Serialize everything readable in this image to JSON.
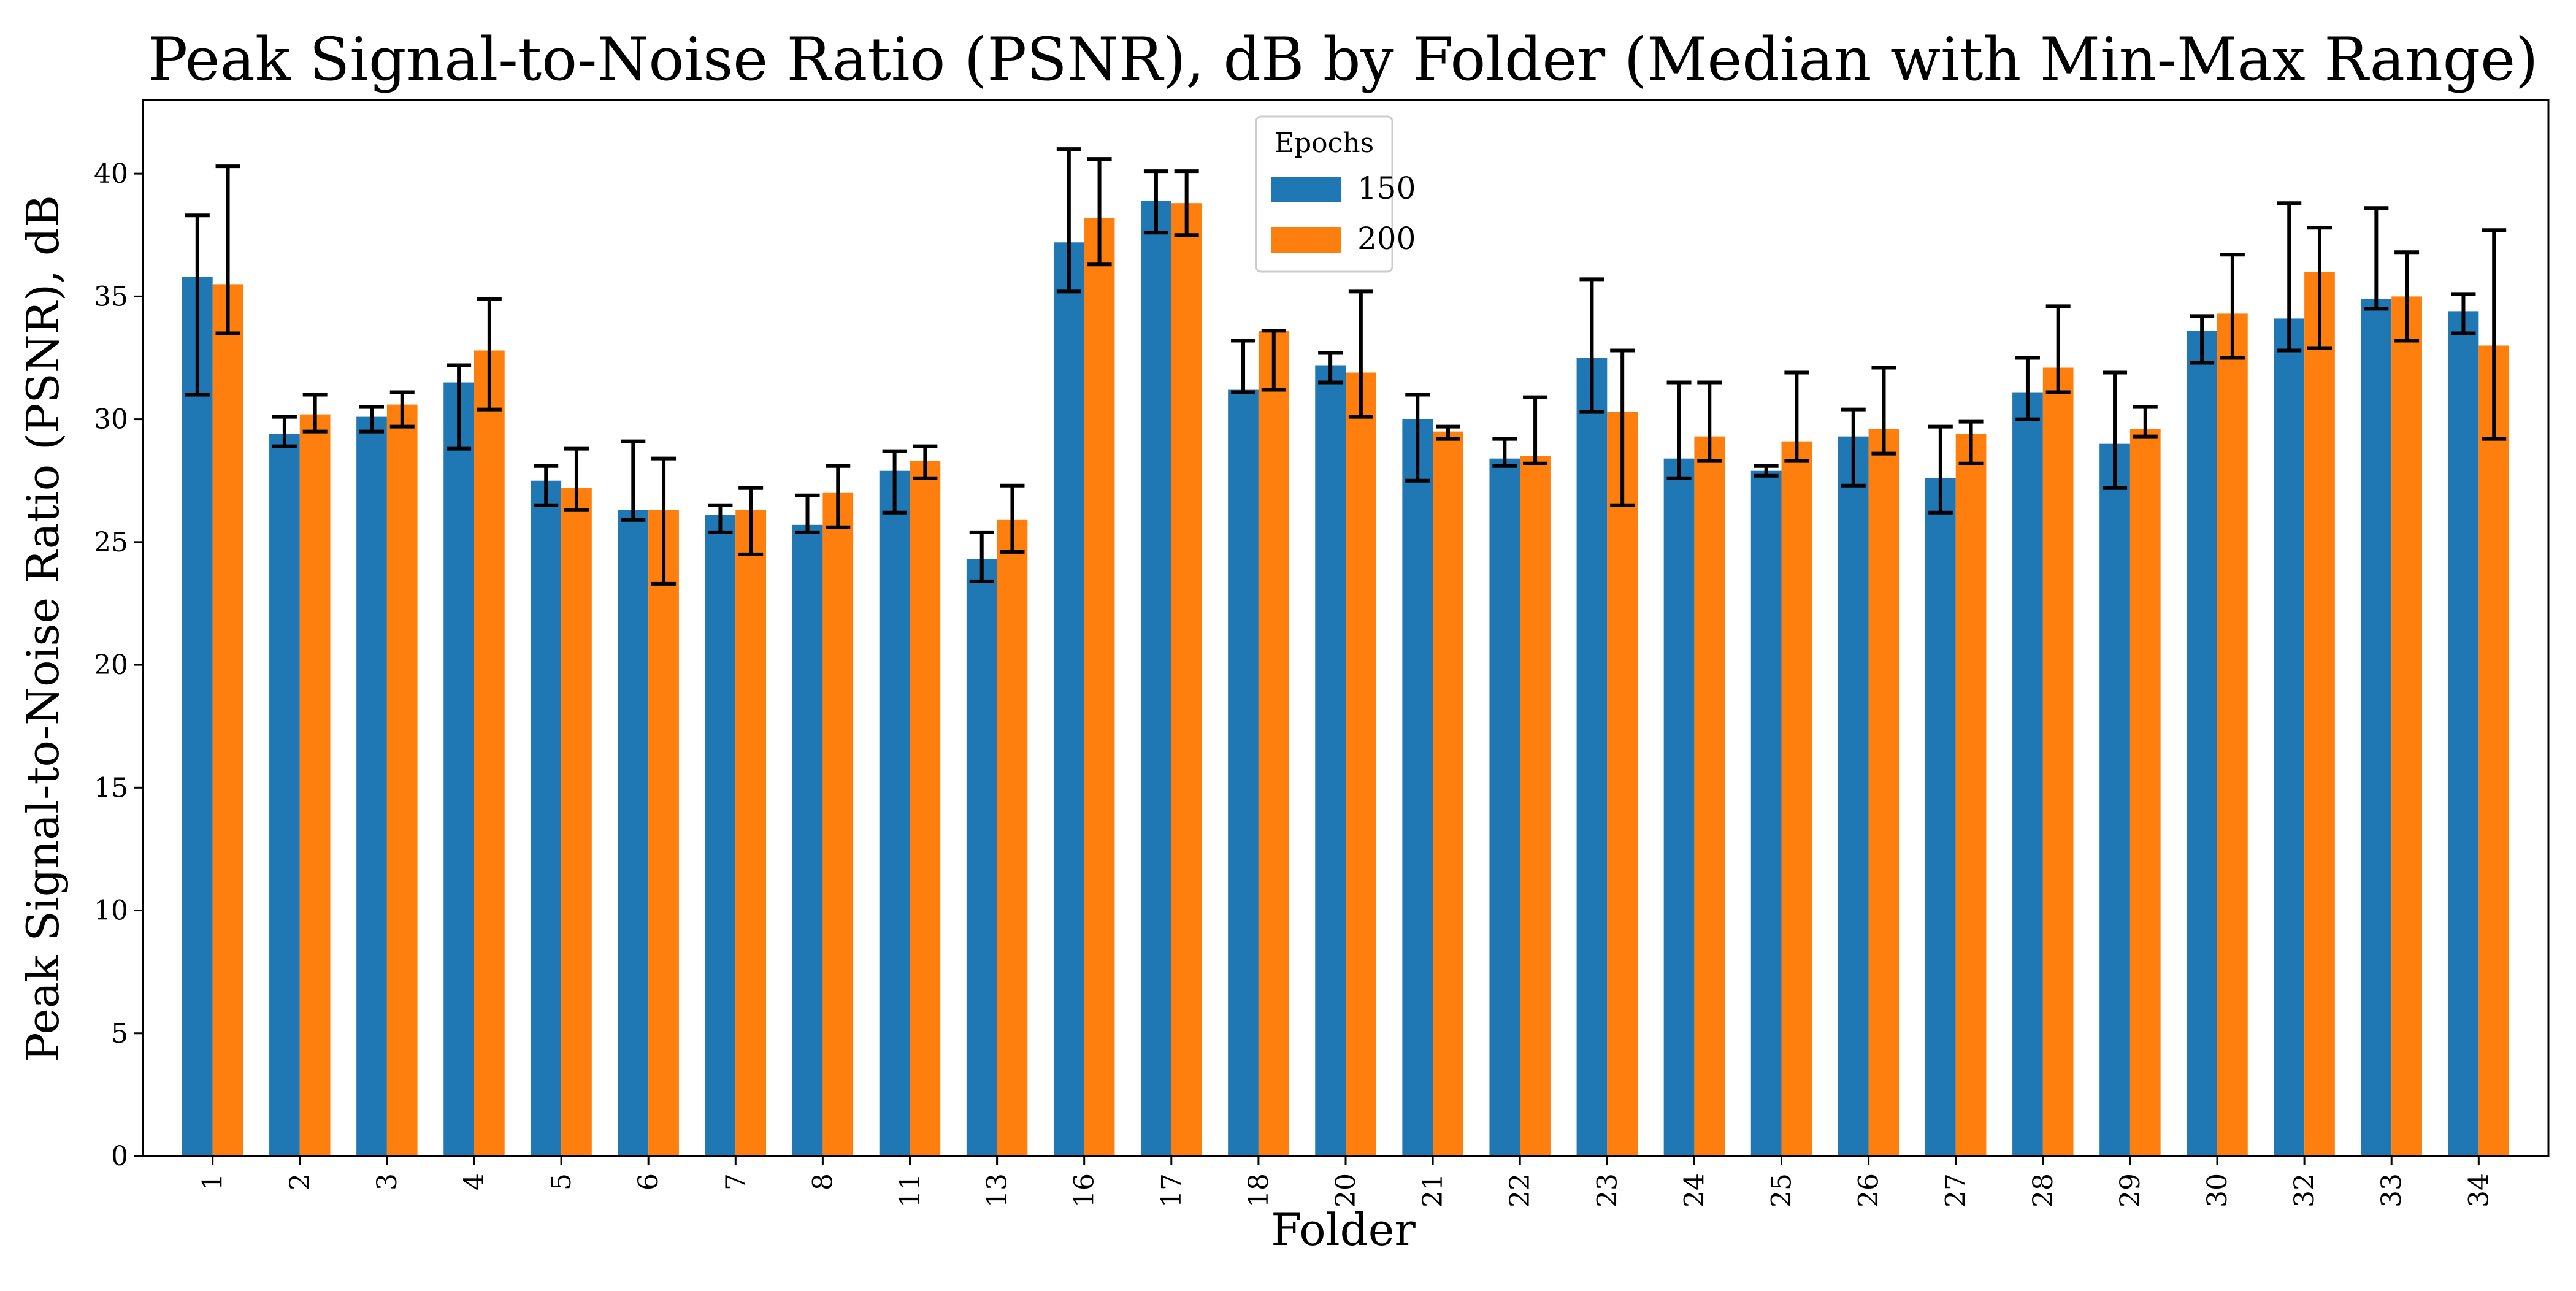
{
  "chart_data": {
    "type": "bar",
    "title": "Peak Signal-to-Noise Ratio (PSNR), dB by Folder (Median with Min-Max Range)",
    "xlabel": "Folder",
    "ylabel": "Peak Signal-to-Noise Ratio (PSNR), dB",
    "ylim": [
      0,
      43
    ],
    "yticks": [
      0,
      5,
      10,
      15,
      20,
      25,
      30,
      35,
      40
    ],
    "grid": false,
    "legend": {
      "title": "Epochs",
      "placement": "top-center"
    },
    "categories": [
      "1",
      "2",
      "3",
      "4",
      "5",
      "6",
      "7",
      "8",
      "11",
      "13",
      "16",
      "17",
      "18",
      "20",
      "21",
      "22",
      "23",
      "24",
      "25",
      "26",
      "27",
      "28",
      "29",
      "30",
      "32",
      "33",
      "34"
    ],
    "series": [
      {
        "name": "150",
        "color": "#1f77b4",
        "values": [
          35.8,
          29.4,
          30.1,
          31.5,
          27.5,
          26.3,
          26.1,
          25.7,
          27.9,
          24.3,
          37.2,
          38.9,
          31.2,
          32.2,
          30.0,
          28.4,
          32.5,
          28.4,
          27.9,
          29.3,
          27.6,
          31.1,
          29.0,
          33.6,
          34.1,
          34.9,
          34.4
        ],
        "min": [
          31.0,
          28.9,
          29.5,
          28.8,
          26.5,
          25.9,
          25.4,
          25.4,
          26.2,
          23.4,
          35.2,
          37.6,
          31.1,
          31.5,
          27.5,
          28.1,
          30.3,
          27.6,
          27.7,
          27.3,
          26.2,
          30.0,
          27.2,
          32.3,
          32.8,
          34.5,
          33.5
        ],
        "max": [
          38.3,
          30.1,
          30.5,
          32.2,
          28.1,
          29.1,
          26.5,
          26.9,
          28.7,
          25.4,
          41.0,
          40.1,
          33.2,
          32.7,
          31.0,
          29.2,
          35.7,
          31.5,
          28.1,
          30.4,
          29.7,
          32.5,
          31.9,
          34.2,
          38.8,
          38.6,
          35.1
        ]
      },
      {
        "name": "200",
        "color": "#ff7f0e",
        "values": [
          35.5,
          30.2,
          30.6,
          32.8,
          27.2,
          26.3,
          26.3,
          27.0,
          28.3,
          25.9,
          38.2,
          38.8,
          33.6,
          31.9,
          29.5,
          28.5,
          30.3,
          29.3,
          29.1,
          29.6,
          29.4,
          32.1,
          29.6,
          34.3,
          36.0,
          35.0,
          33.0
        ],
        "min": [
          33.5,
          29.5,
          29.7,
          30.4,
          26.3,
          23.3,
          24.5,
          25.6,
          27.6,
          24.6,
          36.3,
          37.5,
          31.2,
          30.1,
          29.2,
          28.2,
          26.5,
          28.3,
          28.3,
          28.6,
          28.2,
          31.1,
          29.3,
          32.5,
          32.9,
          33.2,
          29.2
        ],
        "max": [
          40.3,
          31.0,
          31.1,
          34.9,
          28.8,
          28.4,
          27.2,
          28.1,
          28.9,
          27.3,
          40.6,
          40.1,
          33.6,
          35.2,
          29.7,
          30.9,
          32.8,
          31.5,
          31.9,
          32.1,
          29.9,
          34.6,
          30.5,
          36.7,
          37.8,
          36.8,
          37.7
        ]
      }
    ]
  }
}
